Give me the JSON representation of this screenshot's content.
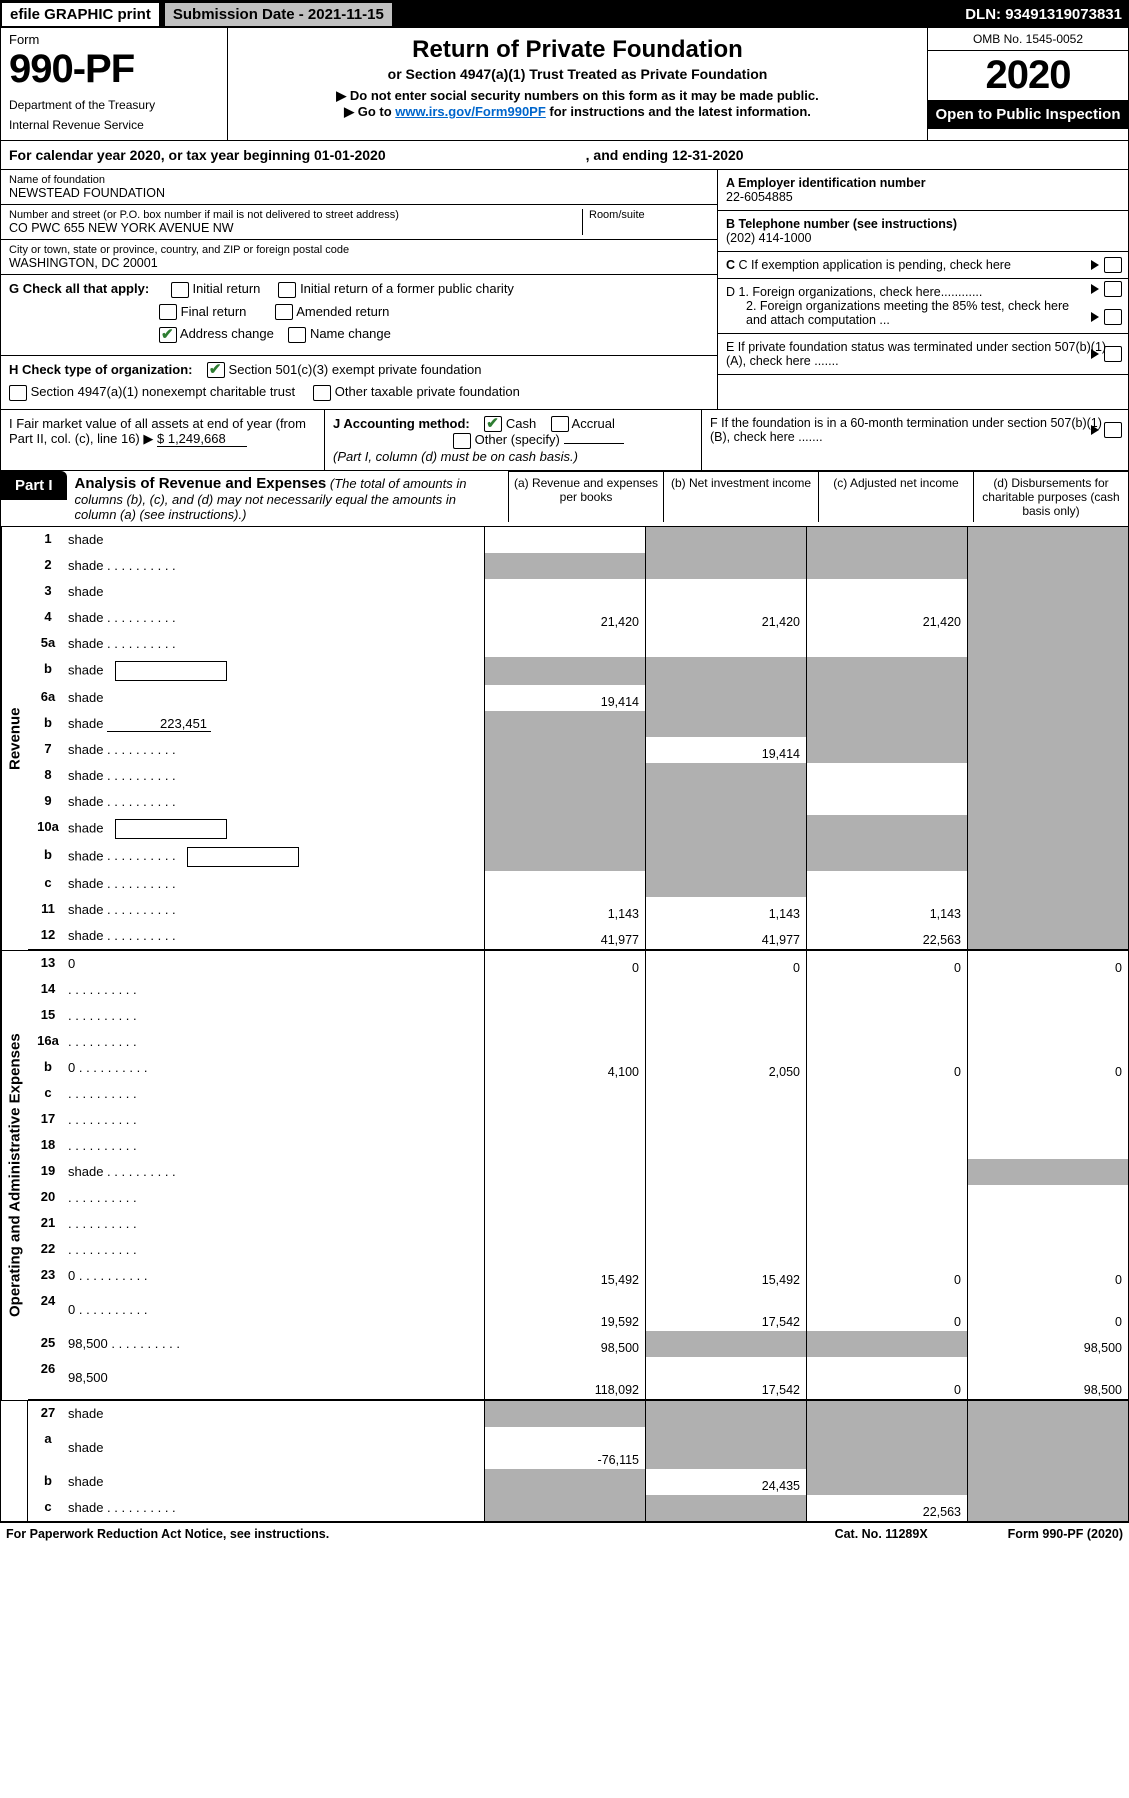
{
  "colors": {
    "black": "#000000",
    "white": "#ffffff",
    "shade": "#b0b0b0",
    "topbar_grey": "#c0c0c0",
    "check_green": "#2e7d32",
    "link": "#0066cc"
  },
  "top": {
    "efile": "efile GRAPHIC print",
    "submission": "Submission Date - 2021-11-15",
    "dln": "DLN: 93491319073831"
  },
  "header": {
    "form_label": "Form",
    "form_no": "990-PF",
    "dept1": "Department of the Treasury",
    "dept2": "Internal Revenue Service",
    "title": "Return of Private Foundation",
    "subtitle": "or Section 4947(a)(1) Trust Treated as Private Foundation",
    "arrow1": "▶ Do not enter social security numbers on this form as it may be made public.",
    "arrow2_pre": "▶ Go to ",
    "arrow2_link": "www.irs.gov/Form990PF",
    "arrow2_post": " for instructions and the latest information.",
    "omb": "OMB No. 1545-0052",
    "year": "2020",
    "open": "Open to Public Inspection"
  },
  "cal": {
    "line_a": "For calendar year 2020, or tax year beginning 01-01-2020",
    "line_b": ", and ending 12-31-2020"
  },
  "entity": {
    "name_label": "Name of foundation",
    "name": "NEWSTEAD FOUNDATION",
    "addr_label": "Number and street (or P.O. box number if mail is not delivered to street address)",
    "addr": "CO PWC 655 NEW YORK AVENUE NW",
    "room_label": "Room/suite",
    "city_label": "City or town, state or province, country, and ZIP or foreign postal code",
    "city": "WASHINGTON, DC  20001",
    "a_label": "A Employer identification number",
    "a_val": "22-6054885",
    "b_label": "B Telephone number (see instructions)",
    "b_val": "(202) 414-1000",
    "c_label": "C If exemption application is pending, check here",
    "d1": "D 1. Foreign organizations, check here............",
    "d2": "2. Foreign organizations meeting the 85% test, check here and attach computation ...",
    "e": "E  If private foundation status was terminated under section 507(b)(1)(A), check here .......",
    "f": "F  If the foundation is in a 60-month termination under section 507(b)(1)(B), check here .......",
    "g_label": "G Check all that apply:",
    "g_opts": [
      "Initial return",
      "Initial return of a former public charity",
      "Final return",
      "Amended return",
      "Address change",
      "Name change"
    ],
    "h_label": "H Check type of organization:",
    "h_opt1": "Section 501(c)(3) exempt private foundation",
    "h_opt2": "Section 4947(a)(1) nonexempt charitable trust",
    "h_opt3": "Other taxable private foundation",
    "i_label": "I Fair market value of all assets at end of year (from Part II, col. (c), line 16) ▶",
    "i_val": "$  1,249,668",
    "j_label": "J Accounting method:",
    "j_cash": "Cash",
    "j_accrual": "Accrual",
    "j_other": "Other (specify)",
    "j_note": "(Part I, column (d) must be on cash basis.)"
  },
  "part1": {
    "badge": "Part I",
    "title": "Analysis of Revenue and Expenses",
    "note": " (The total of amounts in columns (b), (c), and (d) may not necessarily equal the amounts in column (a) (see instructions).)",
    "colA": "(a)   Revenue and expenses per books",
    "colB": "(b)   Net investment income",
    "colC": "(c)   Adjusted net income",
    "colD": "(d)   Disbursements for charitable purposes (cash basis only)"
  },
  "sides": {
    "revenue": "Revenue",
    "opex": "Operating and Administrative Expenses"
  },
  "rows": [
    {
      "n": "1",
      "d": "shade",
      "a": "",
      "b": "shade",
      "c": "shade"
    },
    {
      "n": "2",
      "d": "shade",
      "dots": true,
      "a": "shade",
      "b": "shade",
      "c": "shade"
    },
    {
      "n": "3",
      "d": "shade",
      "a": "",
      "b": "",
      "c": ""
    },
    {
      "n": "4",
      "d": "shade",
      "dots": true,
      "a": "21,420",
      "b": "21,420",
      "c": "21,420"
    },
    {
      "n": "5a",
      "d": "shade",
      "dots": true,
      "a": "",
      "b": "",
      "c": ""
    },
    {
      "n": "b",
      "d": "shade",
      "box": true,
      "a": "shade",
      "b": "shade",
      "c": "shade"
    },
    {
      "n": "6a",
      "d": "shade",
      "a": "19,414",
      "b": "shade",
      "c": "shade"
    },
    {
      "n": "b",
      "d": "shade",
      "under": "223,451",
      "a": "shade",
      "b": "shade",
      "c": "shade"
    },
    {
      "n": "7",
      "d": "shade",
      "dots": true,
      "a": "shade",
      "b": "19,414",
      "c": "shade"
    },
    {
      "n": "8",
      "d": "shade",
      "dots": true,
      "a": "shade",
      "b": "shade",
      "c": ""
    },
    {
      "n": "9",
      "d": "shade",
      "dots": true,
      "a": "shade",
      "b": "shade",
      "c": ""
    },
    {
      "n": "10a",
      "d": "shade",
      "box": true,
      "a": "shade",
      "b": "shade",
      "c": "shade"
    },
    {
      "n": "b",
      "d": "shade",
      "dots": true,
      "box": true,
      "a": "shade",
      "b": "shade",
      "c": "shade"
    },
    {
      "n": "c",
      "d": "shade",
      "dots": true,
      "a": "",
      "b": "shade",
      "c": ""
    },
    {
      "n": "11",
      "d": "shade",
      "dots": true,
      "a": "1,143",
      "b": "1,143",
      "c": "1,143"
    },
    {
      "n": "12",
      "d": "shade",
      "dots": true,
      "a": "41,977",
      "b": "41,977",
      "c": "22,563",
      "bb": true
    }
  ],
  "rows2": [
    {
      "n": "13",
      "d": "0",
      "a": "0",
      "b": "0",
      "c": "0"
    },
    {
      "n": "14",
      "d": "",
      "dots": true,
      "a": "",
      "b": "",
      "c": ""
    },
    {
      "n": "15",
      "d": "",
      "dots": true,
      "a": "",
      "b": "",
      "c": ""
    },
    {
      "n": "16a",
      "d": "",
      "dots": true,
      "a": "",
      "b": "",
      "c": ""
    },
    {
      "n": "b",
      "d": "0",
      "dots": true,
      "a": "4,100",
      "b": "2,050",
      "c": "0"
    },
    {
      "n": "c",
      "d": "",
      "dots": true,
      "a": "",
      "b": "",
      "c": ""
    },
    {
      "n": "17",
      "d": "",
      "dots": true,
      "a": "",
      "b": "",
      "c": ""
    },
    {
      "n": "18",
      "d": "",
      "dots": true,
      "a": "",
      "b": "",
      "c": ""
    },
    {
      "n": "19",
      "d": "shade",
      "dots": true,
      "a": "",
      "b": "",
      "c": ""
    },
    {
      "n": "20",
      "d": "",
      "dots": true,
      "a": "",
      "b": "",
      "c": ""
    },
    {
      "n": "21",
      "d": "",
      "dots": true,
      "a": "",
      "b": "",
      "c": ""
    },
    {
      "n": "22",
      "d": "",
      "dots": true,
      "a": "",
      "b": "",
      "c": ""
    },
    {
      "n": "23",
      "d": "0",
      "dots": true,
      "a": "15,492",
      "b": "15,492",
      "c": "0"
    },
    {
      "n": "24",
      "d": "0",
      "dots": true,
      "a": "19,592",
      "b": "17,542",
      "c": "0",
      "tall": true
    },
    {
      "n": "25",
      "d": "98,500",
      "dots": true,
      "a": "98,500",
      "b": "shade",
      "c": "shade"
    },
    {
      "n": "26",
      "d": "98,500",
      "a": "118,092",
      "b": "17,542",
      "c": "0",
      "tall": true,
      "bb": true
    }
  ],
  "rows3": [
    {
      "n": "27",
      "d": "shade",
      "a": "shade",
      "b": "shade",
      "c": "shade"
    },
    {
      "n": "a",
      "d": "shade",
      "a": "-76,115",
      "b": "shade",
      "c": "shade",
      "tall": true
    },
    {
      "n": "b",
      "d": "shade",
      "a": "shade",
      "b": "24,435",
      "c": "shade"
    },
    {
      "n": "c",
      "d": "shade",
      "dots": true,
      "a": "shade",
      "b": "shade",
      "c": "22,563"
    }
  ],
  "footer": {
    "left": "For Paperwork Reduction Act Notice, see instructions.",
    "mid": "Cat. No. 11289X",
    "right": "Form 990-PF (2020)"
  }
}
